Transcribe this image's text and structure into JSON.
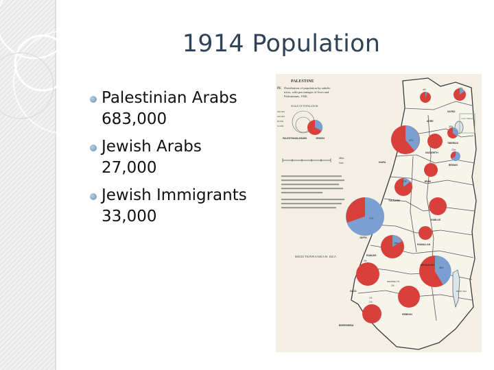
{
  "slide": {
    "title": "1914 Population",
    "bullets": [
      {
        "label": "Palestinian Arabs",
        "value": "683,000"
      },
      {
        "label": "Jewish Arabs",
        "value": "27,000"
      },
      {
        "label": "Jewish Immigrants",
        "value": "33,000"
      }
    ]
  },
  "map": {
    "header": "PALESTINE",
    "caption_number": "IV.",
    "caption": [
      "Distribution of population by subdis-",
      "tricts, with percentages of Jews and",
      "Palestinians, 1946."
    ],
    "scale_label": "SCALE OF POPULATION",
    "scale_values": [
      "200,000",
      "100,000",
      "50,000",
      "10,000"
    ],
    "legend": {
      "palestinian": "PALESTINIAN ARABS",
      "jewish": "JEWISH"
    },
    "distance_label": "Kms",
    "miles_label": "Miles",
    "sea_label": "MEDITERRANEAN SEA",
    "dead_sea_label": "DEAD SEA",
    "lake_label": "LAKE TIBERIAS",
    "note": "less than 1%",
    "towns": [
      "SAFED",
      "ACRE",
      "TIBERIAS",
      "NAZARETH",
      "BEISAN",
      "HAIFA",
      "JENIN",
      "TULKARM",
      "NABLUS",
      "JAFFA",
      "RAMALLAH",
      "RAMLEH",
      "JERUSALEM",
      "GAZA",
      "HEBRON",
      "BEERSHEBA"
    ],
    "percent_labels": [
      "13%",
      "4%",
      "33%",
      "70%",
      "47%",
      "17%",
      "71%",
      "16%",
      "38%",
      "3%",
      "1%",
      "1%",
      "1%"
    ]
  },
  "colors": {
    "title": "#2f4256",
    "bullet": "#7fa3bf",
    "pie_arab": "#d8403b",
    "pie_jewish": "#7c9fd1",
    "map_paper": "#f3efe4"
  }
}
